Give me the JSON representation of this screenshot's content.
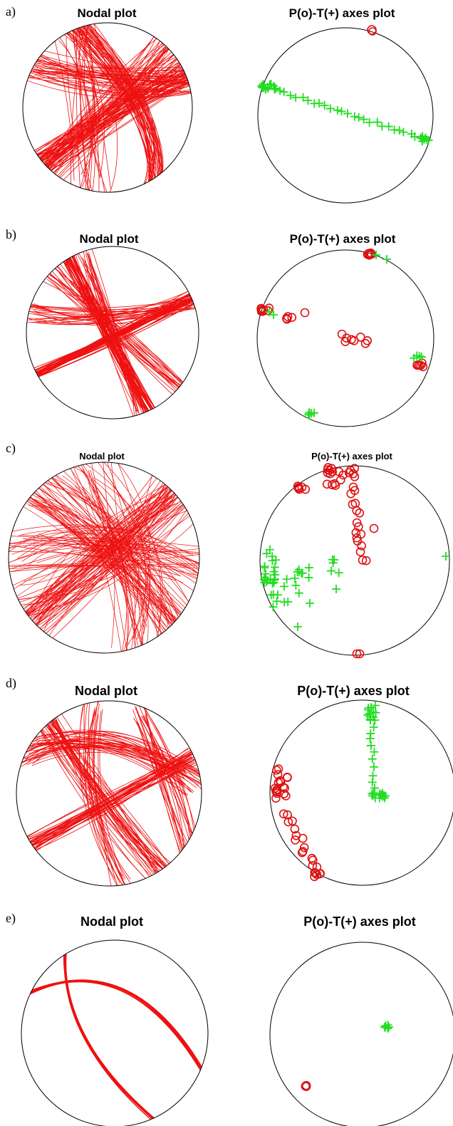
{
  "panels": [
    {
      "letter": "a)",
      "nodal_title": "Nodal plot",
      "axes_title": "P(o)-T(+) axes plot"
    },
    {
      "letter": "b)",
      "nodal_title": "Nodal plot",
      "axes_title": "P(o)-T(+) axes plot"
    },
    {
      "letter": "c)",
      "nodal_title": "Nodal plot",
      "axes_title": "P(o)-T(+) axes plot"
    },
    {
      "letter": "d)",
      "nodal_title": "Nodal plot",
      "axes_title": "P(o)-T(+) axes plot"
    },
    {
      "letter": "e)",
      "nodal_title": "Nodal plot",
      "axes_title": "P(o)-T(+) axes plot"
    }
  ],
  "colors": {
    "nodal_line": "#ee1111",
    "p_axis": "#dd1111",
    "t_axis": "#22dd22",
    "circle": "#000000"
  }
}
